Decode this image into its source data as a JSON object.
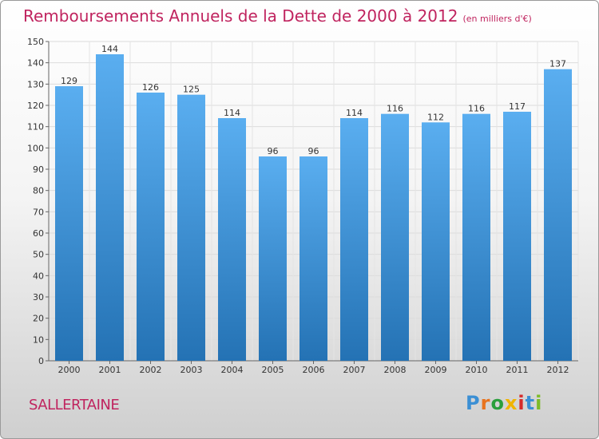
{
  "title": "Remboursements Annuels de la Dette de 2000 à 2012",
  "subtitle": "(en milliers d'€)",
  "commune": "SALLERTAINE",
  "logo": "Proxiti",
  "colors": {
    "bar_top": "#5aaef0",
    "bar_bottom": "#2472b4",
    "title": "#c0245f"
  },
  "chart_data": {
    "type": "bar",
    "title": "Remboursements Annuels de la Dette de 2000 à 2012",
    "subtitle": "(en milliers d'€)",
    "categories": [
      "2000",
      "2001",
      "2002",
      "2003",
      "2004",
      "2005",
      "2006",
      "2007",
      "2008",
      "2009",
      "2010",
      "2011",
      "2012"
    ],
    "values": [
      129,
      144,
      126,
      125,
      114,
      96,
      96,
      114,
      116,
      112,
      116,
      117,
      137
    ],
    "ylim": [
      0,
      150
    ],
    "yticks": [
      0,
      10,
      20,
      30,
      40,
      50,
      60,
      70,
      80,
      90,
      100,
      110,
      120,
      130,
      140,
      150
    ],
    "grid": true
  }
}
